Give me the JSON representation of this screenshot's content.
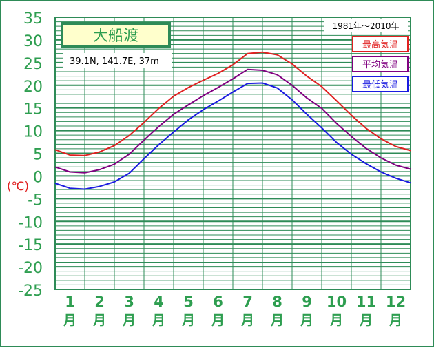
{
  "title": "大船渡",
  "location": "39.1N,  141.7E,  37m",
  "period": "1981年〜2010年",
  "unit_label": "(℃)",
  "colors": {
    "frame": "#2e8b57",
    "grid": "#2e8b57",
    "axis_text": "#2e9e50",
    "unit": "#e02020",
    "title_bg": "#ffffcc",
    "max": "#e02020",
    "mean": "#800080",
    "min": "#1a1ae0"
  },
  "chart_data": {
    "type": "line",
    "ylim": [
      -25,
      35
    ],
    "yticks": [
      35,
      30,
      25,
      20,
      15,
      10,
      5,
      0,
      -5,
      -10,
      -15,
      -20,
      -25
    ],
    "month_labels": [
      "1",
      "2",
      "3",
      "4",
      "5",
      "6",
      "7",
      "8",
      "9",
      "10",
      "11",
      "12"
    ],
    "month_suffix": "月",
    "x": [
      0,
      0.5,
      1,
      1.5,
      2,
      2.5,
      3,
      3.5,
      4,
      4.5,
      5,
      5.5,
      6,
      6.5,
      7,
      7.5,
      8,
      8.5,
      9,
      9.5,
      10,
      10.5,
      11,
      11.5,
      12
    ],
    "series": [
      {
        "name": "最高気温",
        "key": "max",
        "values": [
          5.8,
          4.6,
          4.5,
          5.3,
          6.7,
          8.9,
          11.8,
          14.9,
          17.6,
          19.5,
          21.1,
          22.6,
          24.5,
          27.0,
          27.3,
          26.7,
          24.7,
          22.0,
          19.7,
          16.6,
          13.4,
          10.5,
          8.2,
          6.5,
          5.6
        ]
      },
      {
        "name": "平均気温",
        "key": "mean",
        "values": [
          2.0,
          0.9,
          0.7,
          1.4,
          2.6,
          4.8,
          7.9,
          10.9,
          13.6,
          15.7,
          17.7,
          19.5,
          21.4,
          23.5,
          23.3,
          22.3,
          20.0,
          17.2,
          14.9,
          11.6,
          8.7,
          6.1,
          4.0,
          2.4,
          1.5
        ]
      },
      {
        "name": "最低気温",
        "key": "min",
        "values": [
          -1.6,
          -2.7,
          -2.9,
          -2.3,
          -1.3,
          0.6,
          3.8,
          6.9,
          9.7,
          12.4,
          14.6,
          16.5,
          18.5,
          20.4,
          20.5,
          19.4,
          16.8,
          13.6,
          10.6,
          7.4,
          4.8,
          2.7,
          0.9,
          -0.5,
          -1.5
        ]
      }
    ]
  }
}
